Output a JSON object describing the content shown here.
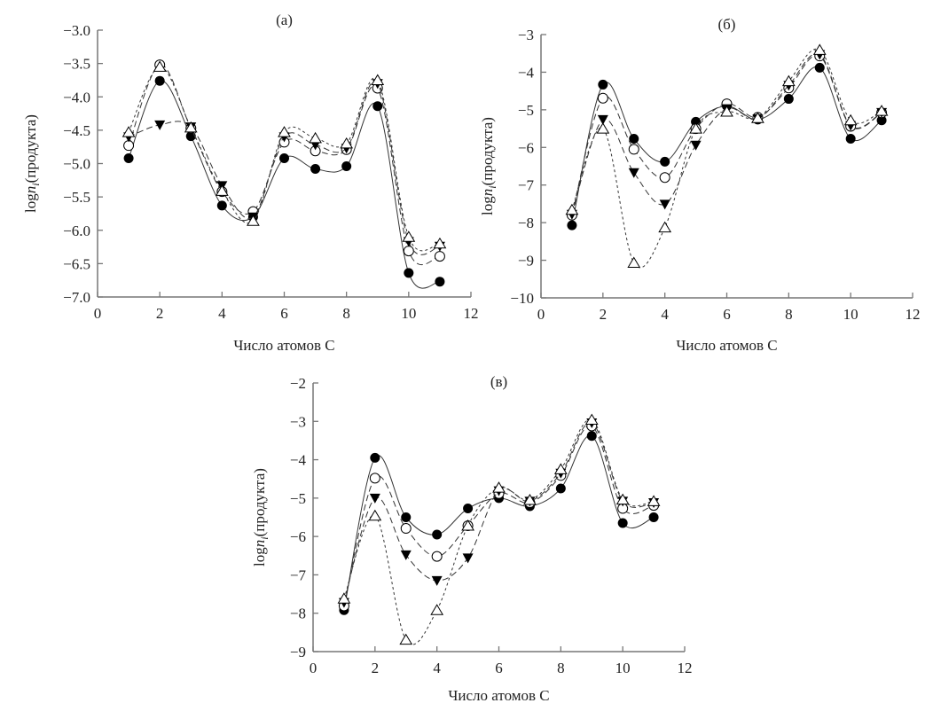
{
  "chart_data": [
    {
      "type": "line",
      "title": "(а)",
      "xlabel": "Число атомов С",
      "ylabel": {
        "prefix": "log",
        "var": "n",
        "sub": "i",
        "suffix": "(продукта)"
      },
      "xlim": [
        0,
        12
      ],
      "ylim": [
        -7.0,
        -3.0
      ],
      "xticks": [
        0,
        2,
        4,
        6,
        8,
        10,
        12
      ],
      "xtick_labels": [
        "0",
        "2",
        "4",
        "6",
        "8",
        "10",
        "12"
      ],
      "yticks": [
        -3.0,
        -3.5,
        -4.0,
        -4.5,
        -5.0,
        -5.5,
        -6.0,
        -6.5,
        -7.0
      ],
      "ytick_labels": [
        "−3.0",
        "−3.5",
        "−4.0",
        "−4.5",
        "−5.0",
        "−5.5",
        "−6.0",
        "−6.5",
        "−7.0"
      ],
      "x": [
        1,
        2,
        3,
        4,
        5,
        6,
        7,
        8,
        9,
        10,
        11
      ],
      "series": [
        {
          "marker": "filled-circle",
          "line": "solid",
          "values": [
            -4.92,
            -3.76,
            -4.59,
            -5.63,
            -5.8,
            -4.92,
            -5.08,
            -5.04,
            -4.14,
            -6.64,
            -6.77
          ]
        },
        {
          "marker": "open-circle",
          "line": "dashed",
          "values": [
            -4.73,
            -3.52,
            -4.47,
            -5.42,
            -5.72,
            -4.68,
            -4.81,
            -4.79,
            -3.87,
            -6.31,
            -6.39
          ]
        },
        {
          "marker": "filled-triangle-down",
          "line": "dashed",
          "values": [
            -4.6,
            -4.42,
            -4.45,
            -5.33,
            -5.8,
            -4.6,
            -4.72,
            -4.77,
            -3.8,
            -6.17,
            -6.24
          ]
        },
        {
          "marker": "open-triangle-up",
          "line": "dash-dot",
          "values": [
            -4.53,
            -3.55,
            -4.46,
            -5.41,
            -5.86,
            -4.53,
            -4.62,
            -4.7,
            -3.75,
            -6.1,
            -6.2
          ]
        }
      ]
    },
    {
      "type": "line",
      "title": "(б)",
      "xlabel": "Число атомов С",
      "ylabel": {
        "prefix": "log",
        "var": "n",
        "sub": "i",
        "suffix": "(продукта)"
      },
      "xlim": [
        0,
        12
      ],
      "ylim": [
        -10,
        -3
      ],
      "xticks": [
        0,
        2,
        4,
        6,
        8,
        10,
        12
      ],
      "xtick_labels": [
        "0",
        "2",
        "4",
        "6",
        "8",
        "10",
        "12"
      ],
      "yticks": [
        -3,
        -4,
        -5,
        -6,
        -7,
        -8,
        -9,
        -10
      ],
      "ytick_labels": [
        "−3",
        "−4",
        "−5",
        "−6",
        "−7",
        "−8",
        "−9",
        "−10"
      ],
      "x": [
        1,
        2,
        3,
        4,
        5,
        6,
        7,
        8,
        9,
        10,
        11
      ],
      "series": [
        {
          "marker": "filled-circle",
          "line": "solid",
          "values": [
            -8.07,
            -4.33,
            -5.77,
            -6.38,
            -5.32,
            -4.9,
            -5.26,
            -4.71,
            -3.88,
            -5.77,
            -5.28
          ]
        },
        {
          "marker": "open-circle",
          "line": "dashed",
          "values": [
            -7.8,
            -4.69,
            -6.05,
            -6.8,
            -5.5,
            -4.84,
            -5.2,
            -4.42,
            -3.57,
            -5.44,
            -5.08
          ]
        },
        {
          "marker": "filled-triangle-down",
          "line": "dashed",
          "values": [
            -7.78,
            -5.26,
            -6.67,
            -7.51,
            -5.94,
            -4.97,
            -5.24,
            -4.35,
            -3.53,
            -5.42,
            -5.07
          ]
        },
        {
          "marker": "open-triangle-up",
          "line": "dash-dot",
          "values": [
            -7.66,
            -5.5,
            -9.07,
            -8.13,
            -5.5,
            -5.05,
            -5.22,
            -4.24,
            -3.41,
            -5.28,
            -5.03
          ]
        }
      ]
    },
    {
      "type": "line",
      "title": "(в)",
      "xlabel": "Число атомов С",
      "ylabel": {
        "prefix": "log",
        "var": "n",
        "sub": "i",
        "suffix": "(продукта)"
      },
      "xlim": [
        0,
        12
      ],
      "ylim": [
        -9,
        -2
      ],
      "xticks": [
        0,
        2,
        4,
        6,
        8,
        10,
        12
      ],
      "xtick_labels": [
        "0",
        "2",
        "4",
        "6",
        "8",
        "10",
        "12"
      ],
      "yticks": [
        -2,
        -3,
        -4,
        -5,
        -6,
        -7,
        -8,
        -9
      ],
      "ytick_labels": [
        "−2",
        "−3",
        "−4",
        "−5",
        "−6",
        "−7",
        "−8",
        "−9"
      ],
      "x": [
        1,
        2,
        3,
        4,
        5,
        6,
        7,
        8,
        9,
        10,
        11
      ],
      "series": [
        {
          "marker": "filled-circle",
          "line": "solid",
          "values": [
            -7.92,
            -3.95,
            -5.5,
            -5.95,
            -5.27,
            -5.0,
            -5.21,
            -4.75,
            -3.38,
            -5.65,
            -5.5
          ]
        },
        {
          "marker": "open-circle",
          "line": "dashed",
          "values": [
            -7.81,
            -4.48,
            -5.79,
            -6.52,
            -5.72,
            -4.88,
            -5.12,
            -4.41,
            -3.12,
            -5.27,
            -5.19
          ]
        },
        {
          "marker": "filled-triangle-down",
          "line": "dashed",
          "values": [
            -7.72,
            -5.0,
            -6.48,
            -7.15,
            -6.56,
            -4.81,
            -5.08,
            -4.35,
            -3.04,
            -5.08,
            -5.12
          ]
        },
        {
          "marker": "open-triangle-up",
          "line": "dash-dot",
          "values": [
            -7.62,
            -5.46,
            -8.69,
            -7.92,
            -5.72,
            -4.73,
            -5.05,
            -4.25,
            -2.96,
            -5.04,
            -5.08
          ]
        }
      ]
    }
  ]
}
